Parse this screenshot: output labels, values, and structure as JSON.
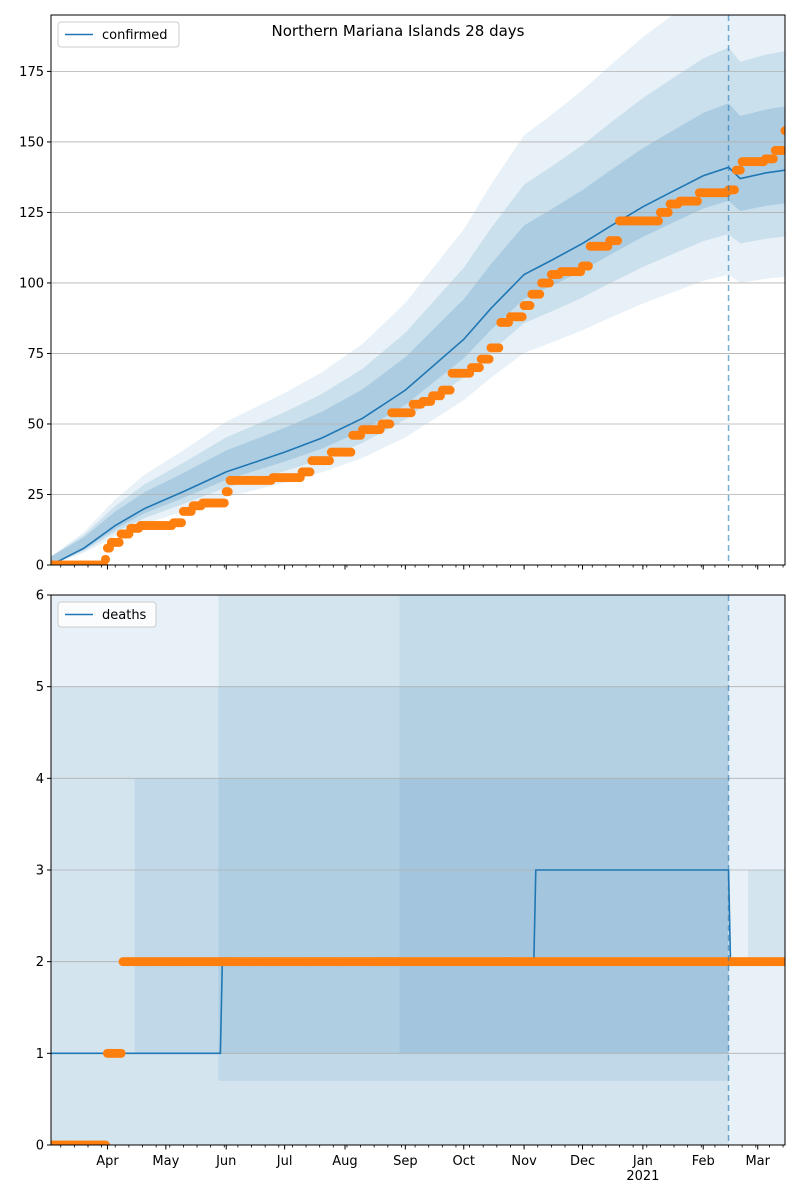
{
  "chart_data": [
    {
      "type": "line",
      "title": "Northern Mariana Islands 28 days",
      "legend": {
        "entries": [
          "confirmed"
        ],
        "placement": "upper-left"
      },
      "grid": "y",
      "ylim": [
        0,
        195
      ],
      "yticks": [
        0,
        25,
        50,
        75,
        100,
        125,
        150,
        175
      ],
      "xlim": [
        "2020-03-03",
        "2021-03-15"
      ],
      "xtick_labels": [
        "Apr",
        "May",
        "Jun",
        "Jul",
        "Aug",
        "Sep",
        "Oct",
        "Nov",
        "Dec",
        "Jan\n2021",
        "Feb",
        "Mar"
      ],
      "vline": "2021-02-14",
      "series": [
        {
          "name": "confirmed",
          "color": "#1f77b4",
          "x": [
            "2020-03-03",
            "2020-03-20",
            "2020-04-05",
            "2020-04-20",
            "2020-05-10",
            "2020-06-01",
            "2020-07-01",
            "2020-07-20",
            "2020-08-10",
            "2020-09-01",
            "2020-10-01",
            "2020-10-15",
            "2020-11-01",
            "2020-11-15",
            "2020-12-01",
            "2020-12-15",
            "2021-01-01",
            "2021-01-15",
            "2021-02-01",
            "2021-02-14",
            "2021-02-20",
            "2021-03-05",
            "2021-03-15"
          ],
          "values": [
            0,
            6,
            14,
            20,
            26,
            33,
            40,
            45,
            52,
            62,
            80,
            91,
            103,
            108,
            114,
            120,
            127,
            132,
            138,
            141,
            137,
            139,
            140
          ]
        },
        {
          "name": "observed",
          "color": "#ff7f0e",
          "x": [
            "2020-03-03",
            "2020-03-31",
            "2020-04-01",
            "2020-04-03",
            "2020-04-08",
            "2020-04-13",
            "2020-04-18",
            "2020-05-05",
            "2020-05-10",
            "2020-05-15",
            "2020-05-20",
            "2020-05-25",
            "2020-06-01",
            "2020-06-03",
            "2020-06-06",
            "2020-06-10",
            "2020-06-25",
            "2020-07-10",
            "2020-07-15",
            "2020-07-25",
            "2020-08-05",
            "2020-08-10",
            "2020-08-20",
            "2020-08-25",
            "2020-09-05",
            "2020-09-10",
            "2020-09-15",
            "2020-09-20",
            "2020-09-25",
            "2020-10-05",
            "2020-10-10",
            "2020-10-15",
            "2020-10-20",
            "2020-10-25",
            "2020-11-01",
            "2020-11-05",
            "2020-11-10",
            "2020-11-15",
            "2020-11-20",
            "2020-11-25",
            "2020-12-01",
            "2020-12-05",
            "2020-12-10",
            "2020-12-15",
            "2020-12-20",
            "2020-12-25",
            "2021-01-05",
            "2021-01-10",
            "2021-01-15",
            "2021-01-20",
            "2021-01-30",
            "2021-02-14",
            "2021-02-18",
            "2021-02-21",
            "2021-03-01",
            "2021-03-05",
            "2021-03-10",
            "2021-03-15"
          ],
          "values": [
            0,
            2,
            6,
            8,
            11,
            13,
            14,
            15,
            19,
            21,
            22,
            22,
            26,
            30,
            30,
            30,
            31,
            33,
            37,
            40,
            46,
            48,
            50,
            54,
            57,
            58,
            60,
            62,
            68,
            70,
            73,
            77,
            86,
            88,
            92,
            96,
            100,
            103,
            104,
            104,
            106,
            113,
            113,
            115,
            122,
            122,
            122,
            125,
            128,
            129,
            132,
            133,
            140,
            143,
            143,
            144,
            147,
            154
          ]
        }
      ],
      "bands": "nested shaded uncertainty bands around the confirmed series"
    },
    {
      "type": "line",
      "title": "",
      "legend": {
        "entries": [
          "deaths"
        ],
        "placement": "upper-left"
      },
      "grid": "y",
      "ylim": [
        0,
        6
      ],
      "yticks": [
        0,
        1,
        2,
        3,
        4,
        5,
        6
      ],
      "xlim": [
        "2020-03-03",
        "2021-03-15"
      ],
      "xtick_labels": [
        "Apr",
        "May",
        "Jun",
        "Jul",
        "Aug",
        "Sep",
        "Oct",
        "Nov",
        "Dec",
        "Jan\n2021",
        "Feb",
        "Mar"
      ],
      "vline": "2021-02-14",
      "series": [
        {
          "name": "deaths",
          "color": "#1f77b4",
          "x": [
            "2020-03-03",
            "2020-05-29",
            "2020-05-30",
            "2020-11-06",
            "2020-11-07",
            "2021-02-14",
            "2021-02-15",
            "2021-03-15"
          ],
          "values": [
            1,
            1,
            2,
            2,
            3,
            3,
            2,
            2
          ]
        },
        {
          "name": "observed",
          "color": "#ff7f0e",
          "x": [
            "2020-03-03",
            "2020-03-31",
            "2020-04-01",
            "2020-04-08",
            "2020-04-09",
            "2021-03-15"
          ],
          "values": [
            0,
            0,
            1,
            1,
            2,
            2
          ]
        }
      ],
      "bands": "nested shaded uncertainty bands around the deaths series"
    }
  ]
}
